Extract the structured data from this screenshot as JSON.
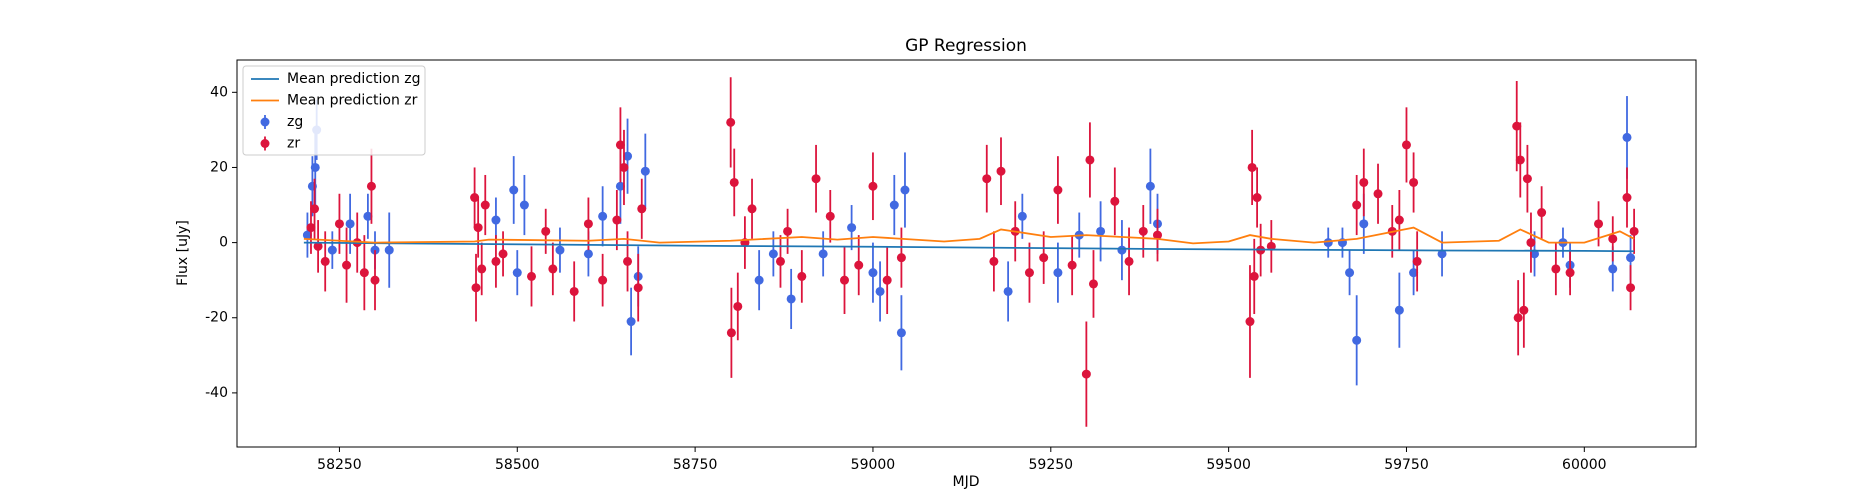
{
  "chart_data": {
    "type": "errorbar",
    "title": "GP Regression",
    "xlabel": "MJD",
    "ylabel": "Flux [uJy]",
    "xlim": [
      58106,
      60157
    ],
    "ylim": [
      -54.4,
      48.6
    ],
    "xticks": [
      58250,
      58500,
      58750,
      59000,
      59250,
      59500,
      59750,
      60000
    ],
    "yticks": [
      -40,
      -20,
      0,
      20,
      40
    ],
    "legend": "upper left",
    "series": [
      {
        "name": "Mean prediction zg",
        "kind": "line",
        "color": "#1f77b4",
        "x": [
          58200,
          58400,
          58600,
          58800,
          59000,
          59200,
          59400,
          59600,
          59800,
          60000,
          60070
        ],
        "values": [
          0,
          -0.3,
          -0.6,
          -0.9,
          -1.1,
          -1.4,
          -1.7,
          -1.9,
          -2.1,
          -2.2,
          -2.3
        ]
      },
      {
        "name": "Mean prediction zr",
        "kind": "line",
        "color": "#ff7f0e",
        "x": [
          58200,
          58300,
          58440,
          58460,
          58600,
          58650,
          58700,
          58800,
          58900,
          58950,
          59000,
          59100,
          59150,
          59180,
          59250,
          59300,
          59400,
          59450,
          59500,
          59530,
          59560,
          59620,
          59680,
          59720,
          59760,
          59800,
          59880,
          59910,
          59950,
          60000,
          60050,
          60070
        ],
        "values": [
          1,
          0,
          0.3,
          0.8,
          0.5,
          1,
          0,
          0.5,
          1.5,
          0.8,
          1.5,
          0.3,
          1,
          3.5,
          1.5,
          2,
          1,
          -0.2,
          0.3,
          2,
          1,
          0,
          1,
          2.5,
          4,
          0,
          0.5,
          3.5,
          0,
          0,
          3,
          1
        ]
      },
      {
        "name": "zg",
        "kind": "errorbar",
        "color": "#4169e1",
        "x": [
          58205,
          58212,
          58216,
          58218,
          58240,
          58265,
          58290,
          58300,
          58320,
          58470,
          58495,
          58500,
          58510,
          58560,
          58600,
          58620,
          58645,
          58655,
          58660,
          58670,
          58680,
          58840,
          58860,
          58885,
          58930,
          58970,
          59000,
          59010,
          59030,
          59040,
          59045,
          59190,
          59210,
          59260,
          59290,
          59320,
          59350,
          59390,
          59400,
          59640,
          59660,
          59670,
          59680,
          59690,
          59740,
          59760,
          59800,
          59930,
          59970,
          59980,
          60040,
          60060,
          60065
        ],
        "values": [
          2,
          15,
          20,
          30,
          -2,
          5,
          7,
          -2,
          -2,
          6,
          14,
          -8,
          10,
          -2,
          -3,
          7,
          15,
          23,
          -21,
          -9,
          19,
          -10,
          -3,
          -15,
          -3,
          4,
          -8,
          -13,
          10,
          -24,
          14,
          -13,
          7,
          -8,
          2,
          3,
          -2,
          15,
          5,
          0,
          0,
          -8,
          -26,
          5,
          -18,
          -8,
          -3,
          -3,
          0,
          -6,
          -7,
          28,
          -4
        ],
        "errors": [
          6,
          8,
          10,
          8,
          5,
          8,
          6,
          5,
          10,
          6,
          9,
          6,
          8,
          6,
          6,
          8,
          10,
          10,
          9,
          8,
          10,
          8,
          6,
          8,
          6,
          6,
          8,
          8,
          8,
          10,
          10,
          8,
          6,
          8,
          6,
          8,
          8,
          10,
          8,
          4,
          4,
          6,
          12,
          8,
          10,
          6,
          6,
          6,
          4,
          6,
          6,
          11,
          6
        ]
      },
      {
        "name": "zr",
        "kind": "errorbar",
        "color": "#dc143c",
        "x": [
          58210,
          58215,
          58220,
          58230,
          58250,
          58260,
          58275,
          58285,
          58295,
          58300,
          58440,
          58442,
          58445,
          58450,
          58455,
          58470,
          58480,
          58520,
          58540,
          58550,
          58580,
          58600,
          58620,
          58640,
          58645,
          58650,
          58655,
          58670,
          58675,
          58800,
          58801,
          58805,
          58810,
          58820,
          58830,
          58870,
          58880,
          58900,
          58920,
          58940,
          58960,
          58980,
          59000,
          59020,
          59040,
          59160,
          59170,
          59180,
          59200,
          59220,
          59240,
          59260,
          59280,
          59300,
          59305,
          59310,
          59340,
          59360,
          59380,
          59400,
          59530,
          59533,
          59536,
          59540,
          59545,
          59560,
          59680,
          59690,
          59710,
          59730,
          59740,
          59750,
          59760,
          59765,
          59905,
          59907,
          59910,
          59915,
          59920,
          59925,
          59940,
          59960,
          59980,
          60020,
          60040,
          60060,
          60065,
          60070
        ],
        "values": [
          4,
          9,
          -1,
          -5,
          5,
          -6,
          0,
          -8,
          15,
          -10,
          12,
          -12,
          4,
          -7,
          10,
          -5,
          -3,
          -9,
          3,
          -7,
          -13,
          5,
          -10,
          6,
          26,
          20,
          -5,
          -12,
          9,
          32,
          -24,
          16,
          -17,
          0,
          9,
          -5,
          3,
          -9,
          17,
          7,
          -10,
          -6,
          15,
          -10,
          -4,
          17,
          -5,
          19,
          3,
          -8,
          -4,
          14,
          -6,
          -35,
          22,
          -11,
          11,
          -5,
          3,
          2,
          -21,
          20,
          -9,
          12,
          -2,
          -1,
          10,
          16,
          13,
          3,
          6,
          26,
          16,
          -5,
          31,
          -20,
          22,
          -18,
          17,
          0,
          8,
          -7,
          -8,
          5,
          1,
          12,
          -12,
          3
        ],
        "errors": [
          7,
          8,
          7,
          8,
          8,
          10,
          8,
          10,
          10,
          8,
          8,
          9,
          8,
          7,
          8,
          7,
          6,
          8,
          6,
          7,
          8,
          7,
          7,
          8,
          10,
          10,
          8,
          9,
          8,
          12,
          12,
          9,
          9,
          7,
          8,
          7,
          6,
          7,
          9,
          7,
          9,
          8,
          9,
          9,
          8,
          9,
          8,
          9,
          8,
          8,
          7,
          9,
          8,
          14,
          10,
          9,
          9,
          9,
          7,
          7,
          15,
          10,
          10,
          8,
          7,
          7,
          8,
          9,
          8,
          7,
          8,
          10,
          8,
          8,
          12,
          10,
          10,
          10,
          9,
          8,
          7,
          7,
          6,
          6,
          6,
          8,
          6,
          6
        ]
      }
    ]
  }
}
